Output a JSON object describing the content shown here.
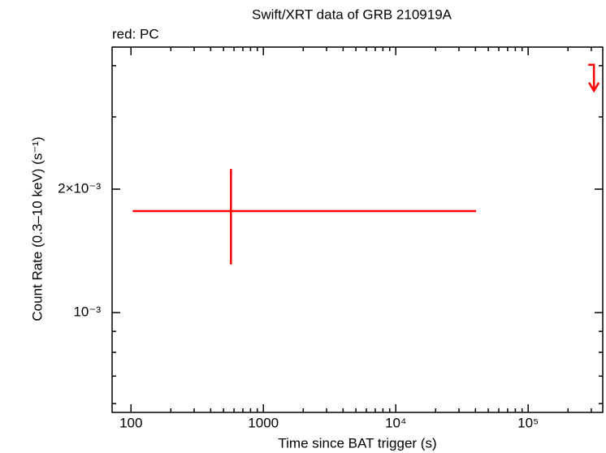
{
  "chart_data": {
    "type": "scatter",
    "title": "Swift/XRT data of GRB 210919A",
    "subtitle": "red: PC",
    "x_label": "Time since BAT trigger (s)",
    "y_label": "Count Rate (0.3–10 keV) (s⁻¹)",
    "xscale": "log",
    "yscale": "log",
    "xlim": [
      72,
      366000
    ],
    "ylim": [
      0.000571,
      0.00444
    ],
    "xticks": [
      100,
      1000,
      {
        "value": 10000,
        "label": "10⁴"
      },
      {
        "value": 100000,
        "label": "10⁵"
      }
    ],
    "xminorticks": [
      200,
      300,
      400,
      500,
      600,
      700,
      800,
      900,
      2000,
      3000,
      4000,
      5000,
      6000,
      7000,
      8000,
      9000,
      20000,
      30000,
      40000,
      50000,
      60000,
      70000,
      80000,
      90000,
      200000,
      300000
    ],
    "yticks": [
      {
        "value": 0.001,
        "label": "10⁻³"
      },
      {
        "value": 0.002,
        "label": "2×10⁻³"
      }
    ],
    "yminorticks": [
      0.0006,
      0.0007,
      0.0008,
      0.0009,
      0.003,
      0.004
    ],
    "series": [
      {
        "color": "#ff0000",
        "x": [
          569
        ],
        "x_low": [
          103
        ],
        "x_high": [
          40450
        ],
        "values": [
          0.001768
        ],
        "y_low": [
          0.00131
        ],
        "y_high": [
          0.00224
        ]
      }
    ],
    "upper_limits": {
      "color": "#ff0000",
      "x": [
        314000
      ],
      "values": [
        0.00402
      ]
    }
  }
}
